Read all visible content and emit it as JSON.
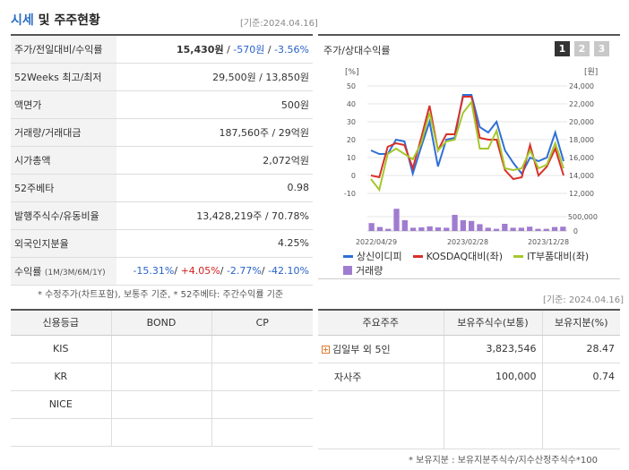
{
  "header": {
    "title_accent": "시세",
    "title_rest": " 및 주주현황",
    "date": "[기준:2024.04.16]"
  },
  "price_rows": [
    {
      "label": "주가/전일대비/수익률",
      "value": "15,430원 / -570원 / -3.56%"
    },
    {
      "label": "52Weeks 최고/최저",
      "value": "29,500원 / 13,850원"
    },
    {
      "label": "액면가",
      "value": "500원"
    },
    {
      "label": "거래량/거래대금",
      "value": "187,560주 / 29억원"
    },
    {
      "label": "시가총액",
      "value": "2,072억원"
    },
    {
      "label": "52주베타",
      "value": "0.98"
    },
    {
      "label": "발행주식수/유동비율",
      "value": "13,428,219주 / 70.78%"
    },
    {
      "label": "외국인지분율",
      "value": "4.25%"
    }
  ],
  "price_first": {
    "price": "15,430원",
    "change": "-570원",
    "rate": "-3.56%"
  },
  "returns": {
    "label": "수익률",
    "label_sub": "(1M/3M/6M/1Y)",
    "v1m": "-15.31%",
    "v3m": "+4.05%",
    "v6m": "-2.77%",
    "v1y": "-42.10%"
  },
  "footnote_left": "* 수정주가(차트포함), 보통주 기준, * 52주베타: 주간수익률 기준",
  "chart_panel": {
    "title": "주가/상대수익률",
    "tabs": [
      "1",
      "2",
      "3"
    ],
    "date": "[기준: 2024.04.16]"
  },
  "chart_data": {
    "type": "line",
    "left_axis_unit": "[%]",
    "right_axis_unit": "[원]",
    "left_ticks": [
      "50",
      "40",
      "30",
      "20",
      "10",
      "0",
      "-10"
    ],
    "right_ticks": [
      "24,000",
      "22,000",
      "20,000",
      "18,000",
      "16,000",
      "14,000",
      "12,000"
    ],
    "volume_ticks": [
      "500,000",
      "0"
    ],
    "x_labels": [
      "2022/04/29",
      "2023/02/28",
      "2023/12/28"
    ],
    "ylim_left": [
      -10,
      50
    ],
    "series": [
      {
        "name": "상신이디피",
        "color": "#2f6fd6",
        "values": [
          14,
          12,
          12,
          20,
          19,
          1,
          16,
          30,
          5,
          20,
          21,
          45,
          45,
          27,
          24,
          30,
          14,
          7,
          1,
          10,
          8,
          10,
          24,
          8
        ]
      },
      {
        "name": "KOSDAQ대비(좌)",
        "color": "#d9302a",
        "values": [
          0,
          -1,
          16,
          18,
          17,
          4,
          21,
          39,
          14,
          23,
          23,
          44,
          44,
          21,
          20,
          20,
          3,
          -2,
          -1,
          17,
          0,
          5,
          15,
          0
        ]
      },
      {
        "name": "IT부품대비(좌)",
        "color": "#a5c72e",
        "values": [
          -2,
          -8,
          12,
          15,
          12,
          9,
          18,
          35,
          14,
          19,
          20,
          35,
          41,
          15,
          15,
          25,
          4,
          3,
          4,
          14,
          4,
          6,
          18,
          4
        ]
      }
    ],
    "volume": {
      "name": "거래량",
      "color": "#a07cd0",
      "values": [
        220000,
        110000,
        60000,
        620000,
        300000,
        90000,
        100000,
        130000,
        100000,
        90000,
        450000,
        300000,
        280000,
        190000,
        90000,
        60000,
        200000,
        90000,
        90000,
        120000,
        60000,
        60000,
        110000,
        120000
      ]
    }
  },
  "credit": {
    "headers": [
      "신용등급",
      "BOND",
      "CP"
    ],
    "rows": [
      [
        "KIS",
        "",
        ""
      ],
      [
        "KR",
        "",
        ""
      ],
      [
        "NICE",
        "",
        ""
      ],
      [
        "",
        "",
        ""
      ]
    ]
  },
  "shareholders": {
    "headers": [
      "주요주주",
      "보유주식수(보통)",
      "보유지분(%)"
    ],
    "rows": [
      {
        "name": "김일부 외 5인",
        "shares": "3,823,546",
        "pct": "28.47"
      },
      {
        "name": "자사주",
        "shares": "100,000",
        "pct": "0.74"
      }
    ],
    "footnote": "* 보유지분 : 보유지분주식수/지수산정주식수*100"
  },
  "colors": {
    "negative": "#2a62c9",
    "positive": "#d21f1f",
    "header_bg": "#f3f3f3"
  }
}
